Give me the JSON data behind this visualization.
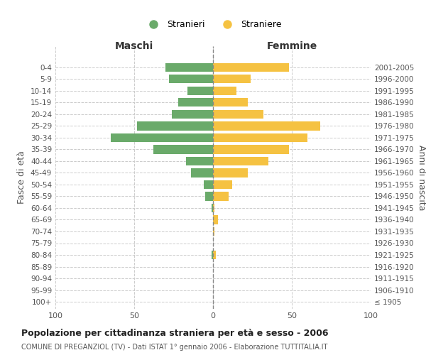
{
  "age_groups": [
    "100+",
    "95-99",
    "90-94",
    "85-89",
    "80-84",
    "75-79",
    "70-74",
    "65-69",
    "60-64",
    "55-59",
    "50-54",
    "45-49",
    "40-44",
    "35-39",
    "30-34",
    "25-29",
    "20-24",
    "15-19",
    "10-14",
    "5-9",
    "0-4"
  ],
  "birth_years": [
    "≤ 1905",
    "1906-1910",
    "1911-1915",
    "1916-1920",
    "1921-1925",
    "1926-1930",
    "1931-1935",
    "1936-1940",
    "1941-1945",
    "1946-1950",
    "1951-1955",
    "1956-1960",
    "1961-1965",
    "1966-1970",
    "1971-1975",
    "1976-1980",
    "1981-1985",
    "1986-1990",
    "1991-1995",
    "1996-2000",
    "2001-2005"
  ],
  "maschi": [
    0,
    0,
    0,
    0,
    1,
    0,
    0,
    0,
    1,
    5,
    6,
    14,
    17,
    38,
    65,
    48,
    26,
    22,
    16,
    28,
    30
  ],
  "femmine": [
    0,
    0,
    0,
    0,
    2,
    0,
    1,
    3,
    1,
    10,
    12,
    22,
    35,
    48,
    60,
    68,
    32,
    22,
    15,
    24,
    48
  ],
  "color_maschi": "#6aaa6a",
  "color_femmine": "#f5c242",
  "title": "Popolazione per cittadinanza straniera per età e sesso - 2006",
  "subtitle": "COMUNE DI PREGANZIOL (TV) - Dati ISTAT 1° gennaio 2006 - Elaborazione TUTTITALIA.IT",
  "xlabel_left": "Maschi",
  "xlabel_right": "Femmine",
  "ylabel_left": "Fasce di età",
  "ylabel_right": "Anni di nascita",
  "legend_maschi": "Stranieri",
  "legend_femmine": "Straniere",
  "xlim": 100,
  "background_color": "#ffffff",
  "grid_color": "#cccccc"
}
